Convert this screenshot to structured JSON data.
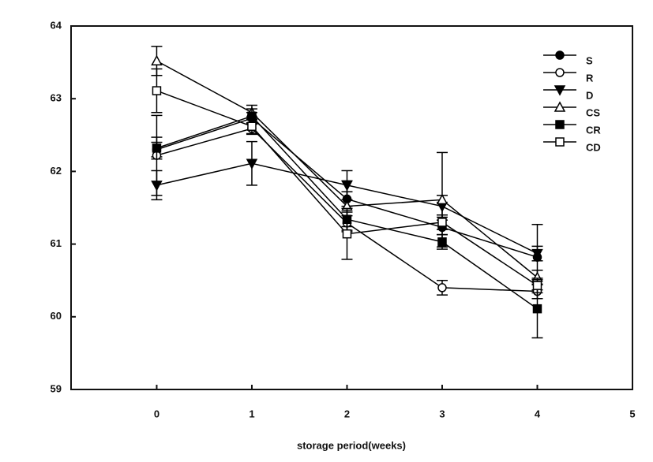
{
  "chart_data": {
    "type": "line",
    "x_label": "storage period(weeks)",
    "x": [
      0,
      1,
      2,
      3,
      4
    ],
    "xlim": [
      -0.9,
      5
    ],
    "xticks": [
      0,
      1,
      2,
      3,
      4,
      5
    ],
    "ylim": [
      59,
      64
    ],
    "yticks": [
      59,
      60,
      61,
      62,
      63,
      64
    ],
    "legend": "upper right",
    "series": [
      {
        "name": "S",
        "color": "#000000",
        "marker": "circle",
        "filled": true,
        "values": [
          62.3,
          62.73,
          61.62,
          61.23,
          60.82
        ],
        "errors": [
          0.1,
          0.08,
          0.1,
          0.1,
          0.45
        ]
      },
      {
        "name": "R",
        "color": "#000000",
        "marker": "circle",
        "filled": false,
        "values": [
          62.22,
          62.59,
          61.29,
          60.4,
          60.35
        ],
        "errors": [
          0.55,
          0.08,
          0.1,
          0.1,
          0.1
        ]
      },
      {
        "name": "D",
        "color": "#000000",
        "marker": "triangle-down",
        "filled": true,
        "values": [
          61.81,
          62.11,
          61.81,
          61.52,
          60.87
        ],
        "errors": [
          0.2,
          0.3,
          0.2,
          0.15,
          0.1
        ]
      },
      {
        "name": "CS",
        "color": "#000000",
        "marker": "triangle-up",
        "filled": false,
        "values": [
          63.52,
          62.81,
          61.52,
          61.61,
          60.54
        ],
        "errors": [
          0.2,
          0.1,
          0.35,
          0.65,
          0.1
        ]
      },
      {
        "name": "CR",
        "color": "#000000",
        "marker": "square",
        "filled": true,
        "values": [
          62.32,
          62.76,
          61.34,
          61.03,
          60.11
        ],
        "errors": [
          0.15,
          0.1,
          0.1,
          0.1,
          0.4
        ]
      },
      {
        "name": "CD",
        "color": "#000000",
        "marker": "square",
        "filled": false,
        "values": [
          63.11,
          62.62,
          61.14,
          61.3,
          60.43
        ],
        "errors": [
          0.3,
          0.1,
          0.35,
          0.1,
          0.1
        ]
      }
    ]
  }
}
